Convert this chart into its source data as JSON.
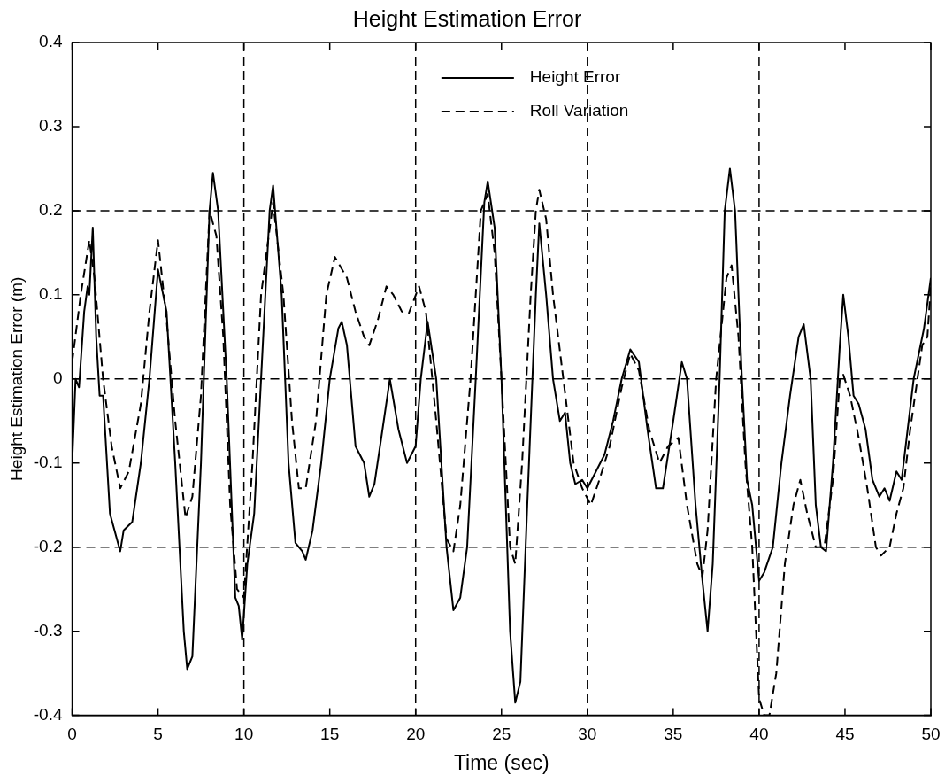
{
  "chart_data": {
    "type": "line",
    "title": "Height Estimation Error",
    "xlabel": "Time (sec)",
    "ylabel": "Height Estimation Error (m)",
    "xlim": [
      0,
      50
    ],
    "xticks": [
      0,
      5,
      10,
      15,
      20,
      25,
      30,
      35,
      40,
      45,
      50
    ],
    "ylim": [
      -0.4,
      0.4
    ],
    "yticks": [
      -0.4,
      -0.3,
      -0.2,
      -0.1,
      0,
      0.1,
      0.2,
      0.3,
      0.4
    ],
    "grid": false,
    "legend": "top",
    "marker": "none",
    "ref_lines": [
      {
        "axis": "y",
        "value": 0.2,
        "color": "#000000",
        "line_style": "dashed"
      },
      {
        "axis": "y",
        "value": 0,
        "color": "#000000",
        "line_style": "dashed"
      },
      {
        "axis": "y",
        "value": -0.2,
        "color": "#000000",
        "line_style": "dashed"
      },
      {
        "axis": "x",
        "value": 10,
        "color": "#000000",
        "line_style": "dashed"
      },
      {
        "axis": "x",
        "value": 20,
        "color": "#000000",
        "line_style": "dashed"
      },
      {
        "axis": "x",
        "value": 30,
        "color": "#000000",
        "line_style": "dashed"
      },
      {
        "axis": "x",
        "value": 40,
        "color": "#000000",
        "line_style": "dashed"
      }
    ],
    "series": [
      {
        "name": "Height Error",
        "color": "#000000",
        "line_style": "solid",
        "x": [
          0,
          0.2,
          0.4,
          0.7,
          0.9,
          1.0,
          1.2,
          1.4,
          1.6,
          1.8,
          2.2,
          2.8,
          3.0,
          3.5,
          4.0,
          4.5,
          5.0,
          5.5,
          6.0,
          6.5,
          6.7,
          7.0,
          7.5,
          8.0,
          8.2,
          8.5,
          9.0,
          9.5,
          9.7,
          9.9,
          10.2,
          10.6,
          11.0,
          11.5,
          11.7,
          12.2,
          12.6,
          13.0,
          13.4,
          13.6,
          14.0,
          14.5,
          15.0,
          15.5,
          15.7,
          16.0,
          16.5,
          17.0,
          17.3,
          17.6,
          18.0,
          18.5,
          19.0,
          19.5,
          20.0,
          20.3,
          20.7,
          21.2,
          21.8,
          22.2,
          22.6,
          23.0,
          23.5,
          24.0,
          24.2,
          24.6,
          25.0,
          25.5,
          25.8,
          26.1,
          26.5,
          27.0,
          27.2,
          27.6,
          28.0,
          28.4,
          28.7,
          29.0,
          29.3,
          29.7,
          30.0,
          30.5,
          31.0,
          31.5,
          32.0,
          32.5,
          33.0,
          33.5,
          34.0,
          34.4,
          35.0,
          35.5,
          35.8,
          36.3,
          36.7,
          37.0,
          37.3,
          37.7,
          38.0,
          38.3,
          38.6,
          39.0,
          39.3,
          39.6,
          40.0,
          40.3,
          40.8,
          41.3,
          41.8,
          42.3,
          42.6,
          43.0,
          43.3,
          43.6,
          43.9,
          44.3,
          44.7,
          44.9,
          45.2,
          45.5,
          45.8,
          46.2,
          46.6,
          47.0,
          47.3,
          47.6,
          48.0,
          48.3,
          49.0,
          49.6,
          50.0
        ],
        "values": [
          -0.1,
          0.0,
          -0.01,
          0.08,
          0.11,
          0.1,
          0.18,
          0.05,
          -0.02,
          -0.02,
          -0.16,
          -0.205,
          -0.18,
          -0.17,
          -0.1,
          0.0,
          0.13,
          0.08,
          -0.1,
          -0.3,
          -0.345,
          -0.33,
          -0.1,
          0.2,
          0.245,
          0.2,
          0.0,
          -0.26,
          -0.27,
          -0.31,
          -0.22,
          -0.16,
          0.0,
          0.2,
          0.23,
          0.1,
          -0.1,
          -0.195,
          -0.205,
          -0.215,
          -0.18,
          -0.1,
          0.0,
          0.06,
          0.068,
          0.04,
          -0.08,
          -0.1,
          -0.14,
          -0.125,
          -0.07,
          0.0,
          -0.06,
          -0.1,
          -0.08,
          0.0,
          0.068,
          0.0,
          -0.2,
          -0.275,
          -0.26,
          -0.2,
          0.0,
          0.21,
          0.235,
          0.18,
          0.0,
          -0.3,
          -0.385,
          -0.36,
          -0.15,
          0.1,
          0.185,
          0.1,
          0.0,
          -0.05,
          -0.04,
          -0.1,
          -0.125,
          -0.12,
          -0.13,
          -0.11,
          -0.09,
          -0.05,
          0.0,
          0.035,
          0.02,
          -0.06,
          -0.13,
          -0.13,
          -0.05,
          0.02,
          0.0,
          -0.15,
          -0.24,
          -0.3,
          -0.22,
          0.0,
          0.2,
          0.25,
          0.2,
          0.0,
          -0.12,
          -0.15,
          -0.24,
          -0.23,
          -0.2,
          -0.1,
          -0.02,
          0.05,
          0.065,
          0.0,
          -0.15,
          -0.2,
          -0.205,
          -0.1,
          0.04,
          0.1,
          0.05,
          -0.02,
          -0.03,
          -0.06,
          -0.12,
          -0.14,
          -0.13,
          -0.145,
          -0.11,
          -0.12,
          0.0,
          0.06,
          0.12
        ]
      },
      {
        "name": "Roll Variation",
        "color": "#000000",
        "line_style": "dashed",
        "x": [
          0,
          0.5,
          1.0,
          1.3,
          1.8,
          2.3,
          2.8,
          3.3,
          4.0,
          4.5,
          5.0,
          5.5,
          6.0,
          6.6,
          7.0,
          7.5,
          8.0,
          8.4,
          8.8,
          9.2,
          9.6,
          10.0,
          10.5,
          11.0,
          11.7,
          12.3,
          12.8,
          13.2,
          13.6,
          14.2,
          14.8,
          15.3,
          16.0,
          16.5,
          17.0,
          17.3,
          17.8,
          18.3,
          18.7,
          19.2,
          19.6,
          20.2,
          20.6,
          21.2,
          21.8,
          22.2,
          22.6,
          23.2,
          23.8,
          24.2,
          24.6,
          25.0,
          25.5,
          25.8,
          26.2,
          26.7,
          27.0,
          27.2,
          27.6,
          28.0,
          28.6,
          29.2,
          29.7,
          30.2,
          30.7,
          31.3,
          32.0,
          32.5,
          33.0,
          33.6,
          34.2,
          34.7,
          35.3,
          35.8,
          36.4,
          36.7,
          37.0,
          37.5,
          38.1,
          38.4,
          38.8,
          39.2,
          39.6,
          40.0,
          40.3,
          40.6,
          41.0,
          41.5,
          42.0,
          42.4,
          42.8,
          43.3,
          43.8,
          44.3,
          44.7,
          44.9,
          45.3,
          45.8,
          46.3,
          46.8,
          47.1,
          47.6,
          48.0,
          48.4,
          48.8,
          49.5,
          49.8,
          50.0
        ],
        "values": [
          0.02,
          0.1,
          0.165,
          0.12,
          0.0,
          -0.08,
          -0.13,
          -0.11,
          -0.03,
          0.08,
          0.165,
          0.07,
          -0.05,
          -0.165,
          -0.14,
          -0.02,
          0.2,
          0.17,
          0.05,
          -0.15,
          -0.25,
          -0.26,
          -0.1,
          0.1,
          0.21,
          0.1,
          -0.05,
          -0.13,
          -0.13,
          -0.05,
          0.1,
          0.145,
          0.12,
          0.08,
          0.05,
          0.04,
          0.07,
          0.11,
          0.1,
          0.08,
          0.078,
          0.11,
          0.08,
          -0.05,
          -0.19,
          -0.205,
          -0.15,
          0.0,
          0.2,
          0.22,
          0.15,
          0.0,
          -0.2,
          -0.22,
          -0.1,
          0.1,
          0.2,
          0.225,
          0.19,
          0.1,
          0.0,
          -0.1,
          -0.13,
          -0.15,
          -0.12,
          -0.08,
          -0.01,
          0.03,
          0.01,
          -0.06,
          -0.1,
          -0.08,
          -0.07,
          -0.15,
          -0.22,
          -0.235,
          -0.18,
          0.0,
          0.12,
          0.135,
          0.05,
          -0.1,
          -0.2,
          -0.38,
          -0.4,
          -0.4,
          -0.35,
          -0.22,
          -0.15,
          -0.12,
          -0.16,
          -0.2,
          -0.2,
          -0.12,
          0.0,
          0.005,
          -0.02,
          -0.07,
          -0.13,
          -0.2,
          -0.21,
          -0.2,
          -0.16,
          -0.13,
          -0.06,
          0.04,
          0.05,
          0.11
        ]
      }
    ]
  }
}
